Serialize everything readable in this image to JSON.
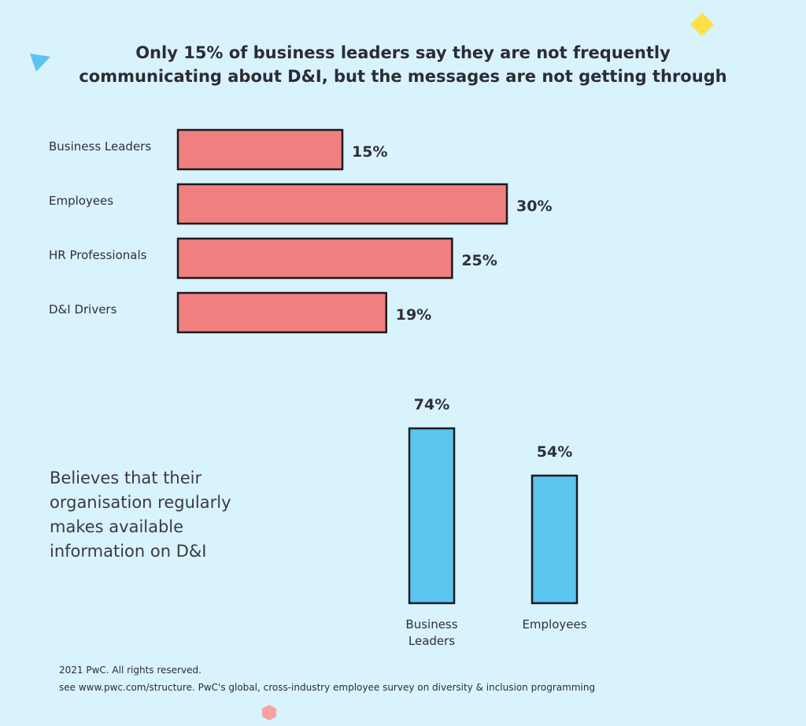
{
  "title": {
    "line1": "Only 15% of business leaders say they are not frequently",
    "line2": "communicating about D&I, but the messages are not getting through"
  },
  "chart_data": [
    {
      "type": "bar",
      "orientation": "horizontal",
      "categories": [
        "Business Leaders",
        "Employees",
        "HR Professionals",
        "D&I Drivers"
      ],
      "values": [
        15,
        30,
        25,
        19
      ],
      "labels": [
        "15%",
        "30%",
        "25%",
        "19%"
      ],
      "xlim": [
        0,
        30
      ],
      "grid": false,
      "color": "#f08080"
    },
    {
      "type": "bar",
      "orientation": "vertical",
      "title": "Believes that their organisation regularly makes available information on D&I",
      "categories": [
        "Business Leaders",
        "Employees"
      ],
      "category_lines": [
        [
          "Business",
          "Leaders"
        ],
        [
          "Employees"
        ]
      ],
      "values": [
        74,
        54
      ],
      "labels": [
        "74%",
        "54%"
      ],
      "ylim": [
        0,
        74
      ],
      "grid": false,
      "color": "#5bc4ef"
    }
  ],
  "side_note": {
    "lines": [
      "Believes that their",
      "organisation regularly",
      "makes available",
      "information on D&I"
    ]
  },
  "footer": {
    "line1": "2021 PwC. All rights reserved.",
    "line2": "see www.pwc.com/structure. PwC's global, cross-industry employee survey on diversity & inclusion programming"
  },
  "colors": {
    "background": "#d9f3fd",
    "bar_red": "#f08080",
    "bar_blue": "#5bc4ef",
    "deco_yellow": "#fbe04a",
    "deco_blue": "#5ec3f2",
    "deco_pink": "#f7a3a3"
  }
}
